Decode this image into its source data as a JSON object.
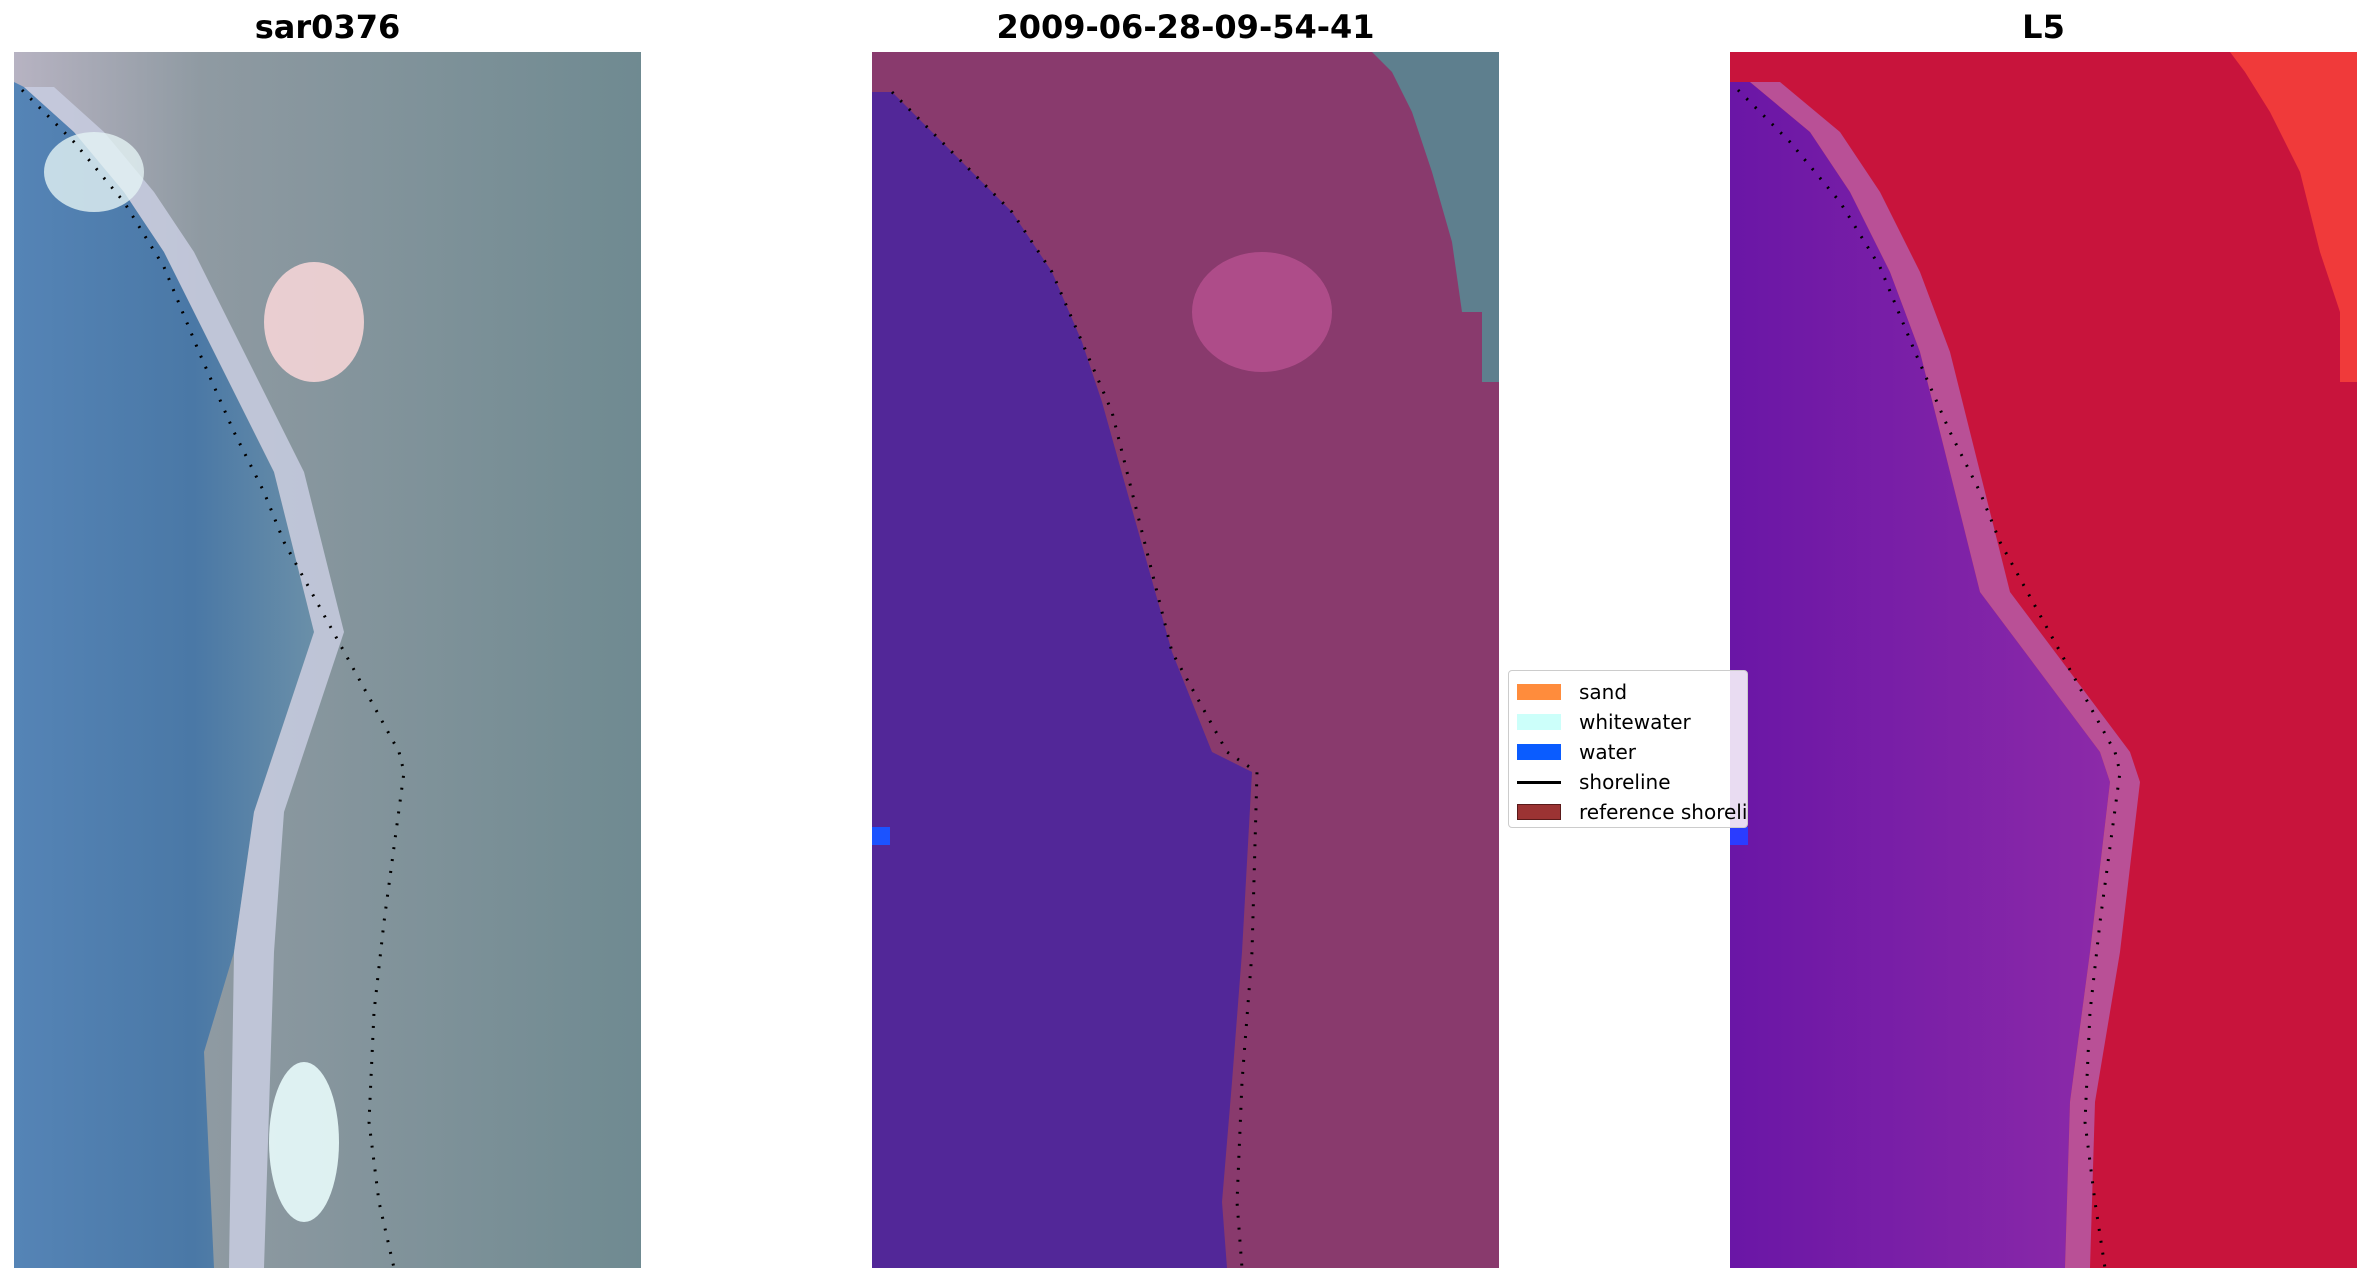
{
  "panels": [
    {
      "title": "sar0376",
      "style": "rgb"
    },
    {
      "title": "2009-06-28-09-54-41",
      "style": "classified"
    },
    {
      "title": "L5",
      "style": "index"
    }
  ],
  "legend": {
    "items": [
      {
        "label": "sand",
        "color": "#ff8c3c",
        "kind": "patch"
      },
      {
        "label": "whitewater",
        "color": "#ccfffa",
        "kind": "patch"
      },
      {
        "label": "water",
        "color": "#0a5cff",
        "kind": "patch"
      },
      {
        "label": "shoreline",
        "color": "#000000",
        "kind": "line"
      },
      {
        "label": "reference shoreline",
        "color": "#9b3333",
        "kind": "patch"
      }
    ]
  },
  "colors": {
    "water_rgb": "#4a7aa8",
    "land_rgb": "#7f9099",
    "classified_water": "#522798",
    "classified_land": "#8a3a6e",
    "index_water": "#7a22a8",
    "index_land": "#c8103c"
  }
}
